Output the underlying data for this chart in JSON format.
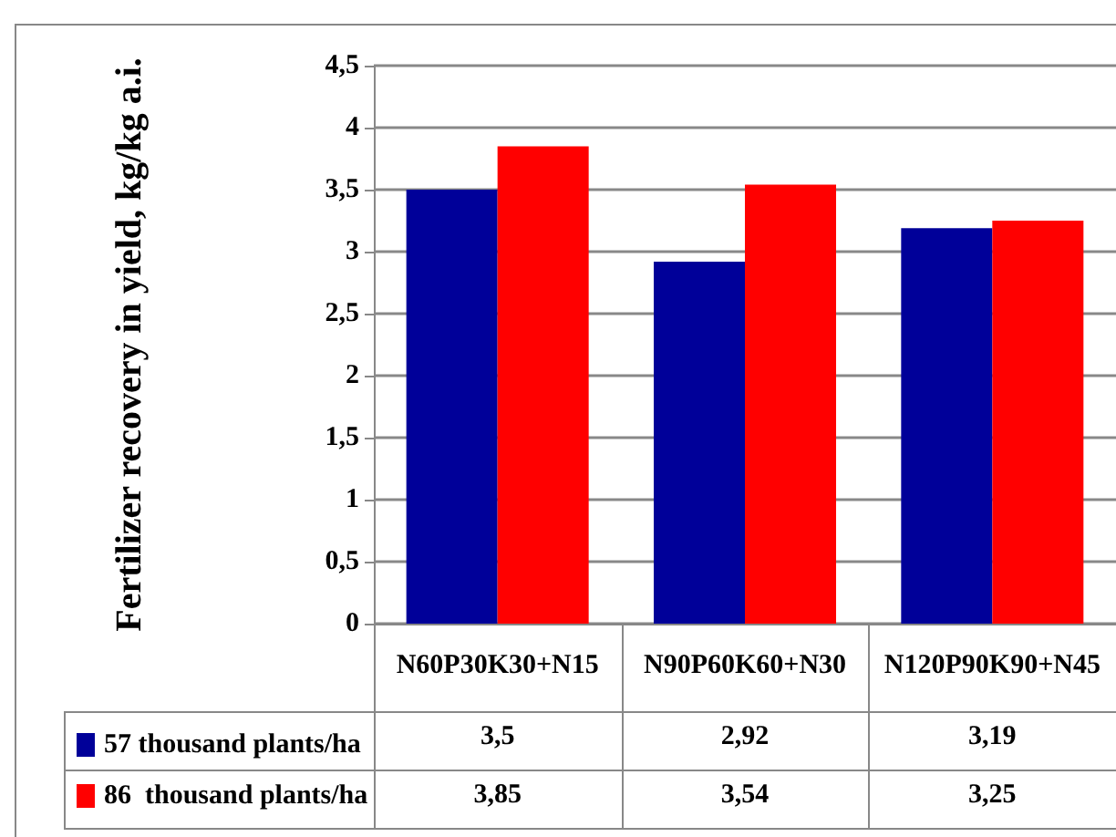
{
  "chart_data": {
    "type": "bar",
    "ylabel": "Fertilizer recovery in yield, kg/kg a.i.",
    "categories": [
      "N60P30K30+N15",
      "N90P60K60+N30",
      "N120P90K90+N45"
    ],
    "series": [
      {
        "name": "57 thousand plants/ha",
        "color": "#000099",
        "values": [
          3.5,
          2.92,
          3.19
        ],
        "value_labels": [
          "3,5",
          "2,92",
          "3,19"
        ]
      },
      {
        "name": "86  thousand plants/ha",
        "color": "#ff0000",
        "values": [
          3.85,
          3.54,
          3.25
        ],
        "value_labels": [
          "3,85",
          "3,54",
          "3,25"
        ]
      }
    ],
    "ylim": [
      0,
      4.5
    ],
    "yticks": [
      0,
      {
        "value": 0.5,
        "label": "0,5"
      },
      1,
      {
        "value": 1.5,
        "label": "1,5"
      },
      2,
      {
        "value": 2.5,
        "label": "2,5"
      },
      3,
      {
        "value": 3.5,
        "label": "3,5"
      },
      4,
      {
        "value": 4.5,
        "label": "4,5"
      }
    ],
    "grid": "y",
    "legend": "bottom"
  }
}
